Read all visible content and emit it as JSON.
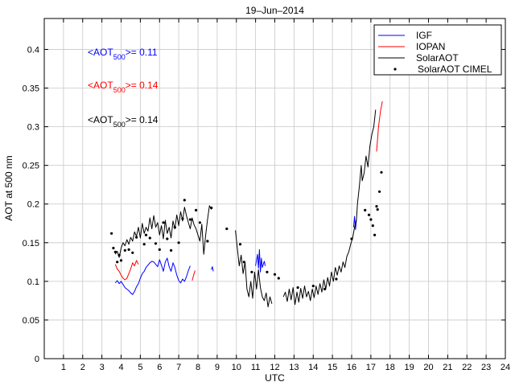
{
  "chart_data": {
    "type": "line",
    "title": "19–Jun–2014",
    "xlabel": "UTC",
    "ylabel": "AOT at 500 nm",
    "xlim": [
      0,
      24
    ],
    "ylim": [
      0,
      0.44
    ],
    "grid": true,
    "xticks": [
      "1",
      "2",
      "3",
      "4",
      "5",
      "6",
      "7",
      "8",
      "9",
      "10",
      "11",
      "12",
      "13",
      "14",
      "15",
      "16",
      "17",
      "18",
      "19",
      "20",
      "21",
      "22",
      "23",
      "24"
    ],
    "yticks": [
      "0",
      "0.05",
      "0.1",
      "0.15",
      "0.2",
      "0.25",
      "0.3",
      "0.35",
      "0.4"
    ],
    "legend_position": "top-right",
    "colors": {
      "igf": "#0000ff",
      "iopan": "#ff0000",
      "solaraot": "#000000",
      "cimel": "#000000"
    },
    "annotations": [
      {
        "prefix": "<AOT",
        "sub": "500",
        "suffix": ">= 0.11",
        "color": "#0000ff"
      },
      {
        "prefix": "<AOT",
        "sub": "500",
        "suffix": ">= 0.14",
        "color": "#ff0000"
      },
      {
        "prefix": "<AOT",
        "sub": "500",
        "suffix": ">= 0.14",
        "color": "#000000"
      }
    ],
    "series": [
      {
        "name": "IGF",
        "style": "line",
        "color": "#0000ff",
        "segments": [
          [
            [
              3.7,
              0.098
            ],
            [
              3.8,
              0.101
            ],
            [
              3.9,
              0.097
            ],
            [
              4.0,
              0.1
            ],
            [
              4.1,
              0.096
            ],
            [
              4.2,
              0.092
            ],
            [
              4.3,
              0.09
            ],
            [
              4.4,
              0.088
            ],
            [
              4.5,
              0.085
            ],
            [
              4.6,
              0.083
            ],
            [
              4.7,
              0.087
            ],
            [
              4.8,
              0.093
            ],
            [
              4.9,
              0.097
            ],
            [
              5.0,
              0.104
            ],
            [
              5.1,
              0.11
            ],
            [
              5.2,
              0.113
            ],
            [
              5.3,
              0.118
            ],
            [
              5.4,
              0.121
            ],
            [
              5.5,
              0.124
            ],
            [
              5.6,
              0.126
            ],
            [
              5.7,
              0.125
            ],
            [
              5.8,
              0.122
            ],
            [
              5.9,
              0.119
            ],
            [
              6.0,
              0.128
            ],
            [
              6.1,
              0.121
            ],
            [
              6.2,
              0.113
            ],
            [
              6.3,
              0.125
            ],
            [
              6.4,
              0.13
            ],
            [
              6.5,
              0.119
            ],
            [
              6.6,
              0.113
            ],
            [
              6.7,
              0.124
            ],
            [
              6.8,
              0.118
            ],
            [
              6.9,
              0.108
            ],
            [
              7.0,
              0.101
            ],
            [
              7.1,
              0.098
            ],
            [
              7.2,
              0.103
            ],
            [
              7.3,
              0.1
            ],
            [
              7.4,
              0.106
            ],
            [
              7.5,
              0.114
            ],
            [
              7.6,
              0.12
            ]
          ],
          [
            [
              8.7,
              0.115
            ],
            [
              8.75,
              0.119
            ],
            [
              8.8,
              0.113
            ]
          ],
          [
            [
              11.0,
              0.12
            ],
            [
              11.1,
              0.135
            ],
            [
              11.15,
              0.117
            ],
            [
              11.2,
              0.141
            ],
            [
              11.25,
              0.112
            ],
            [
              11.3,
              0.13
            ],
            [
              11.35,
              0.118
            ],
            [
              11.45,
              0.126
            ],
            [
              11.5,
              0.12
            ]
          ],
          [
            [
              16.1,
              0.17
            ],
            [
              16.15,
              0.184
            ],
            [
              16.2,
              0.167
            ],
            [
              16.25,
              0.18
            ]
          ]
        ]
      },
      {
        "name": "IOPAN",
        "style": "line",
        "color": "#ff0000",
        "segments": [
          [
            [
              3.7,
              0.122
            ],
            [
              3.8,
              0.116
            ],
            [
              3.9,
              0.113
            ],
            [
              4.0,
              0.108
            ],
            [
              4.1,
              0.104
            ],
            [
              4.2,
              0.102
            ],
            [
              4.3,
              0.104
            ],
            [
              4.4,
              0.11
            ],
            [
              4.5,
              0.116
            ],
            [
              4.6,
              0.124
            ],
            [
              4.7,
              0.12
            ],
            [
              4.8,
              0.127
            ],
            [
              4.9,
              0.122
            ]
          ],
          [
            [
              7.7,
              0.101
            ],
            [
              7.8,
              0.11
            ],
            [
              7.85,
              0.114
            ]
          ],
          [
            [
              17.3,
              0.268
            ],
            [
              17.4,
              0.3
            ],
            [
              17.5,
              0.32
            ],
            [
              17.6,
              0.333
            ]
          ]
        ]
      },
      {
        "name": "SolarAOT",
        "style": "line",
        "color": "#000000",
        "segments": [
          [
            [
              3.7,
              0.135
            ],
            [
              3.8,
              0.139
            ],
            [
              3.9,
              0.131
            ],
            [
              4.0,
              0.143
            ],
            [
              4.1,
              0.15
            ],
            [
              4.2,
              0.146
            ],
            [
              4.3,
              0.154
            ],
            [
              4.4,
              0.148
            ],
            [
              4.5,
              0.157
            ],
            [
              4.6,
              0.152
            ],
            [
              4.7,
              0.164
            ],
            [
              4.8,
              0.158
            ],
            [
              4.9,
              0.17
            ],
            [
              5.0,
              0.156
            ],
            [
              5.1,
              0.175
            ],
            [
              5.2,
              0.162
            ],
            [
              5.3,
              0.17
            ],
            [
              5.4,
              0.165
            ],
            [
              5.5,
              0.182
            ],
            [
              5.6,
              0.168
            ],
            [
              5.7,
              0.185
            ],
            [
              5.8,
              0.17
            ],
            [
              5.9,
              0.176
            ],
            [
              6.0,
              0.16
            ],
            [
              6.1,
              0.172
            ],
            [
              6.2,
              0.155
            ],
            [
              6.3,
              0.179
            ],
            [
              6.4,
              0.162
            ],
            [
              6.5,
              0.17
            ],
            [
              6.6,
              0.156
            ],
            [
              6.7,
              0.178
            ],
            [
              6.8,
              0.168
            ],
            [
              6.9,
              0.186
            ],
            [
              7.0,
              0.172
            ],
            [
              7.1,
              0.19
            ],
            [
              7.2,
              0.178
            ],
            [
              7.3,
              0.196
            ],
            [
              7.4,
              0.185
            ],
            [
              7.5,
              0.176
            ],
            [
              7.6,
              0.168
            ],
            [
              7.7,
              0.182
            ],
            [
              7.8,
              0.173
            ],
            [
              7.9,
              0.168
            ],
            [
              8.0,
              0.16
            ],
            [
              8.1,
              0.152
            ],
            [
              8.2,
              0.174
            ],
            [
              8.3,
              0.135
            ],
            [
              8.4,
              0.16
            ],
            [
              8.5,
              0.18
            ],
            [
              8.6,
              0.198
            ],
            [
              8.7,
              0.193
            ]
          ],
          [
            [
              9.95,
              0.166
            ],
            [
              10.05,
              0.143
            ],
            [
              10.15,
              0.12
            ],
            [
              10.25,
              0.134
            ],
            [
              10.35,
              0.11
            ],
            [
              10.45,
              0.125
            ],
            [
              10.55,
              0.09
            ],
            [
              10.65,
              0.08
            ],
            [
              10.75,
              0.1
            ],
            [
              10.85,
              0.078
            ],
            [
              10.95,
              0.112
            ],
            [
              11.05,
              0.09
            ],
            [
              11.15,
              0.115
            ],
            [
              11.25,
              0.092
            ],
            [
              11.35,
              0.08
            ],
            [
              11.45,
              0.075
            ],
            [
              11.55,
              0.085
            ],
            [
              11.65,
              0.067
            ],
            [
              11.75,
              0.08
            ],
            [
              11.85,
              0.071
            ]
          ],
          [
            [
              12.45,
              0.08
            ],
            [
              12.55,
              0.086
            ],
            [
              12.65,
              0.074
            ],
            [
              12.75,
              0.09
            ],
            [
              12.85,
              0.076
            ],
            [
              12.95,
              0.092
            ],
            [
              13.05,
              0.07
            ],
            [
              13.15,
              0.086
            ],
            [
              13.25,
              0.073
            ],
            [
              13.35,
              0.091
            ],
            [
              13.45,
              0.078
            ],
            [
              13.55,
              0.094
            ],
            [
              13.65,
              0.08
            ],
            [
              13.75,
              0.087
            ],
            [
              13.85,
              0.075
            ],
            [
              13.95,
              0.09
            ],
            [
              14.05,
              0.079
            ],
            [
              14.15,
              0.094
            ],
            [
              14.25,
              0.083
            ],
            [
              14.35,
              0.097
            ],
            [
              14.45,
              0.086
            ],
            [
              14.55,
              0.102
            ],
            [
              14.65,
              0.09
            ],
            [
              14.75,
              0.105
            ],
            [
              14.85,
              0.094
            ],
            [
              14.95,
              0.112
            ],
            [
              15.05,
              0.1
            ],
            [
              15.15,
              0.118
            ],
            [
              15.25,
              0.108
            ],
            [
              15.35,
              0.12
            ],
            [
              15.45,
              0.112
            ],
            [
              15.55,
              0.125
            ],
            [
              15.65,
              0.118
            ],
            [
              15.75,
              0.132
            ],
            [
              15.85,
              0.138
            ],
            [
              15.95,
              0.148
            ],
            [
              16.05,
              0.156
            ],
            [
              16.15,
              0.17
            ],
            [
              16.25,
              0.18
            ],
            [
              16.3,
              0.2
            ],
            [
              16.4,
              0.222
            ],
            [
              16.5,
              0.25
            ],
            [
              16.55,
              0.23
            ],
            [
              16.65,
              0.24
            ],
            [
              16.75,
              0.262
            ],
            [
              16.85,
              0.248
            ],
            [
              16.95,
              0.275
            ],
            [
              17.05,
              0.29
            ],
            [
              17.15,
              0.3
            ],
            [
              17.25,
              0.322
            ]
          ]
        ]
      },
      {
        "name": "SolarAOT CIMEL",
        "style": "markers",
        "color": "#000000",
        "points": [
          [
            3.5,
            0.162
          ],
          [
            3.6,
            0.143
          ],
          [
            3.7,
            0.138
          ],
          [
            3.8,
            0.125
          ],
          [
            3.9,
            0.134
          ],
          [
            4.0,
            0.127
          ],
          [
            4.2,
            0.14
          ],
          [
            4.4,
            0.141
          ],
          [
            4.6,
            0.137
          ],
          [
            4.8,
            0.157
          ],
          [
            5.2,
            0.148
          ],
          [
            5.3,
            0.16
          ],
          [
            5.5,
            0.156
          ],
          [
            5.8,
            0.149
          ],
          [
            6.0,
            0.141
          ],
          [
            6.2,
            0.176
          ],
          [
            6.4,
            0.155
          ],
          [
            6.6,
            0.14
          ],
          [
            6.8,
            0.17
          ],
          [
            7.0,
            0.15
          ],
          [
            7.2,
            0.181
          ],
          [
            7.3,
            0.205
          ],
          [
            7.6,
            0.18
          ],
          [
            7.9,
            0.192
          ],
          [
            8.1,
            0.176
          ],
          [
            8.5,
            0.152
          ],
          [
            8.7,
            0.195
          ],
          [
            9.5,
            0.168
          ],
          [
            10.2,
            0.148
          ],
          [
            10.4,
            0.125
          ],
          [
            10.8,
            0.112
          ],
          [
            11.6,
            0.112
          ],
          [
            12.0,
            0.109
          ],
          [
            12.2,
            0.104
          ],
          [
            13.2,
            0.092
          ],
          [
            14.0,
            0.094
          ],
          [
            14.6,
            0.09
          ],
          [
            15.2,
            0.103
          ],
          [
            16.0,
            0.155
          ],
          [
            16.7,
            0.192
          ],
          [
            16.9,
            0.186
          ],
          [
            17.0,
            0.18
          ],
          [
            17.1,
            0.172
          ],
          [
            17.2,
            0.16
          ],
          [
            17.3,
            0.197
          ],
          [
            17.35,
            0.193
          ],
          [
            17.45,
            0.216
          ],
          [
            17.55,
            0.241
          ]
        ]
      }
    ]
  }
}
